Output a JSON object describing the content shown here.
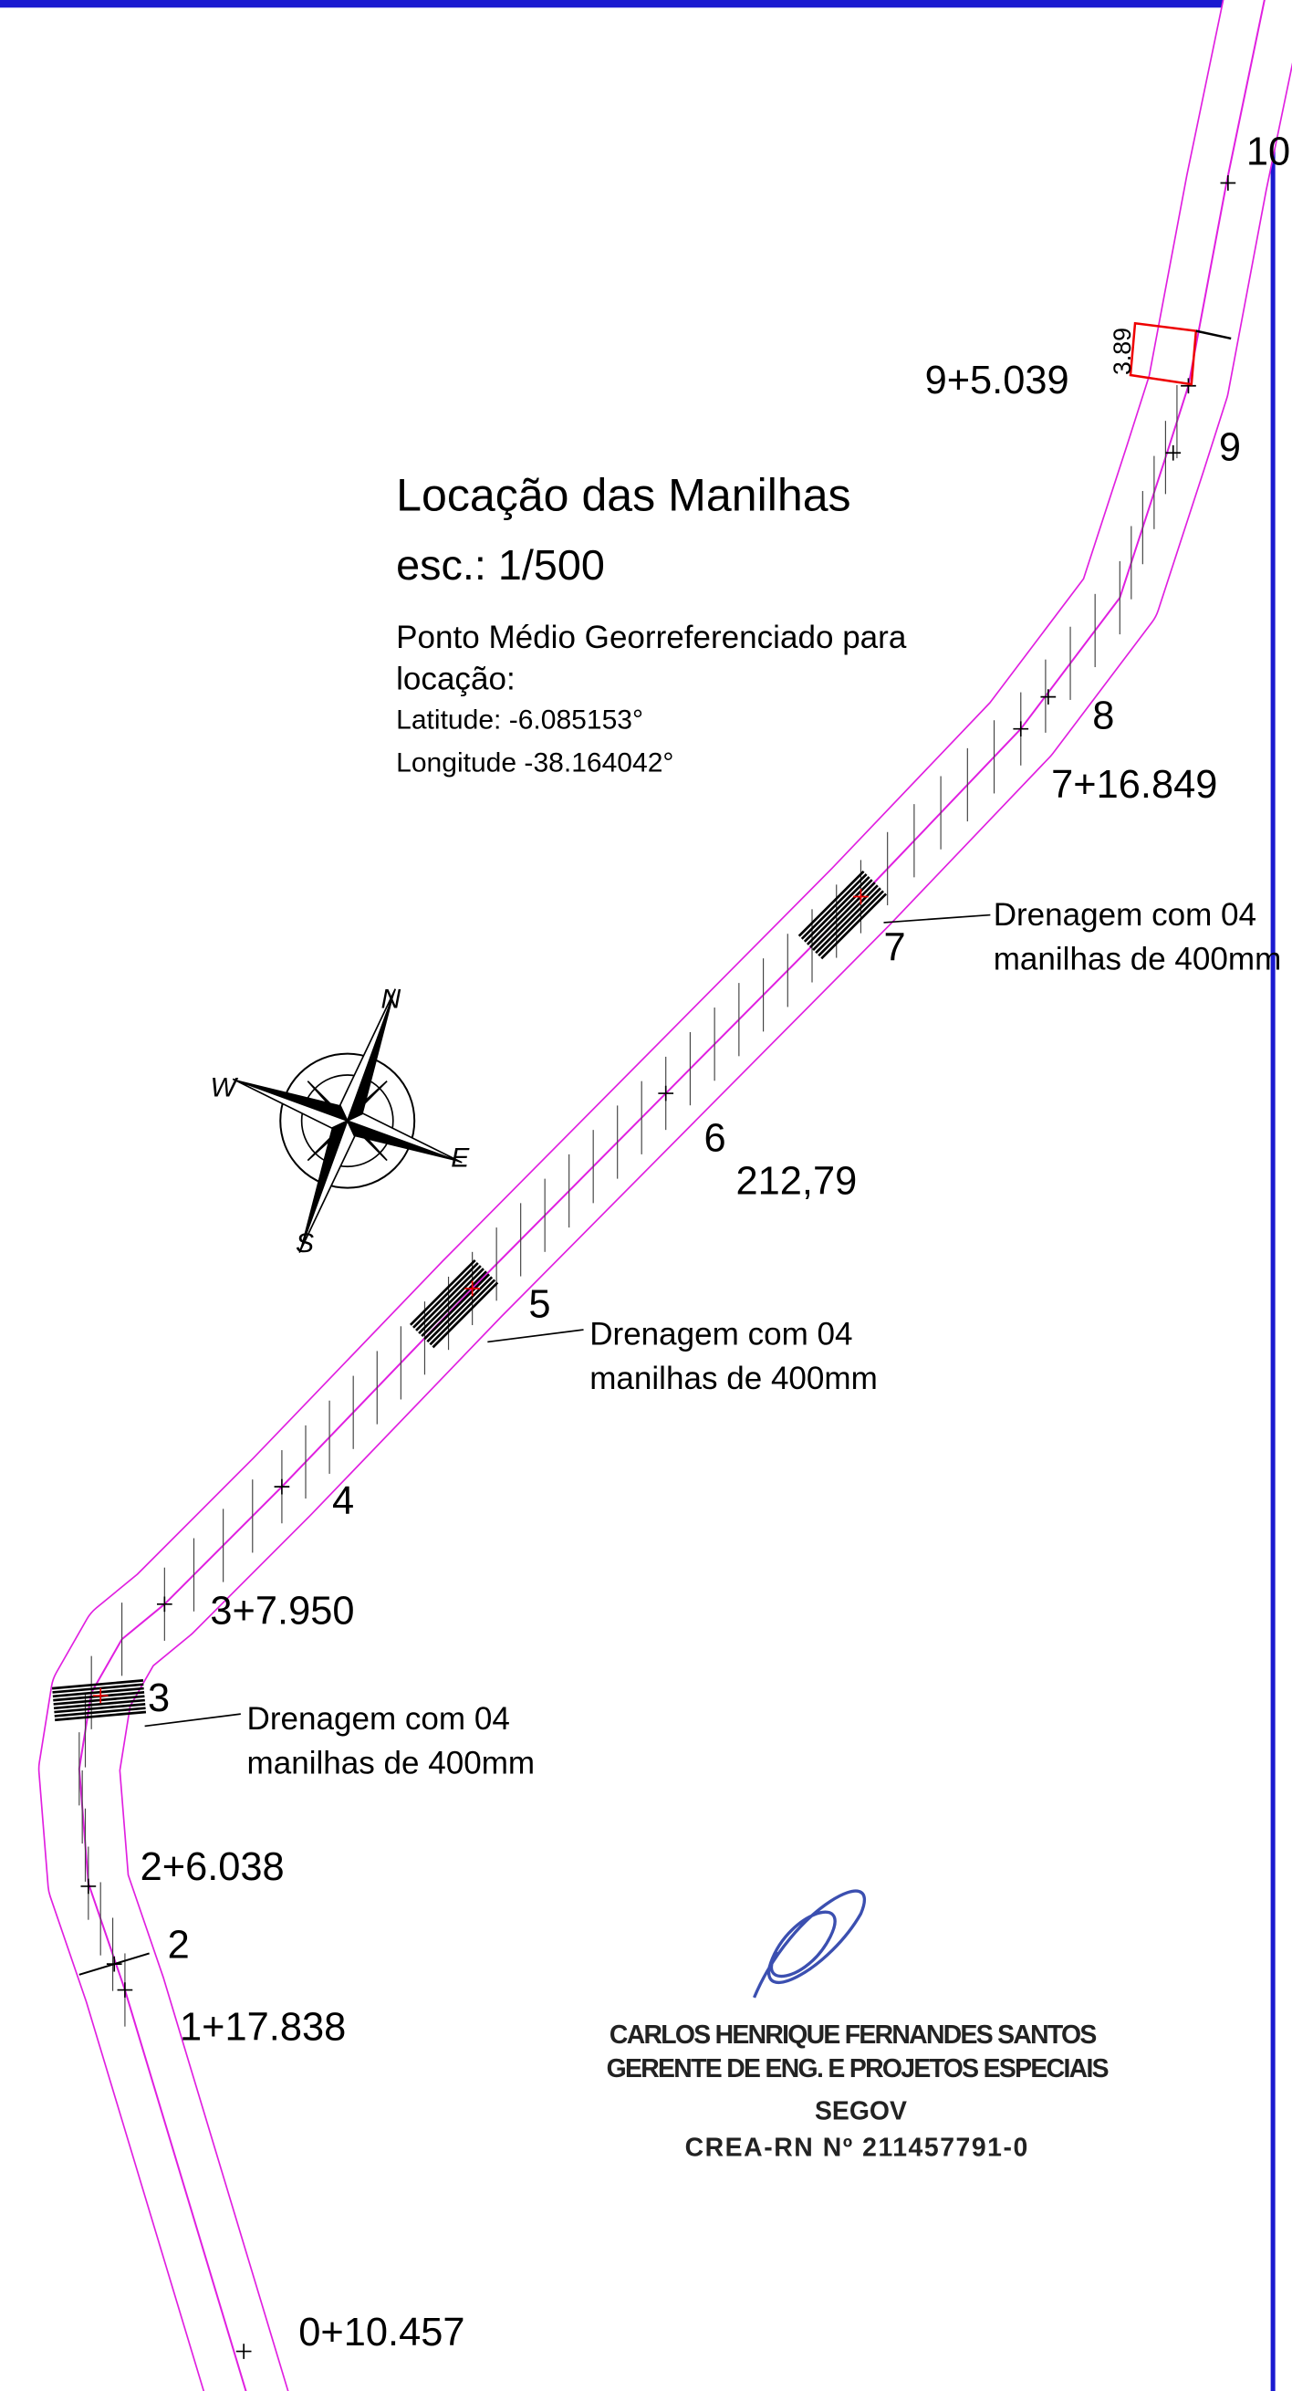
{
  "title": "Locação das Manilhas",
  "scale": "esc.: 1/500",
  "georef": {
    "lines": [
      "Ponto Médio Georreferenciado para",
      "locação:"
    ],
    "latitude": "Latitude: -6.085153°",
    "longitude": "Longitude -38.164042°"
  },
  "stations": [
    "10",
    "9+5.039",
    "9",
    "8",
    "7+16.849",
    "7",
    "6",
    "212,79",
    "5",
    "4",
    "3+7.950",
    "3",
    "2+6.038",
    "2",
    "1+17.838",
    "0+10.457"
  ],
  "dimension": "3.89",
  "annotations": [
    {
      "lines": [
        "Drenagem com 04",
        "manilhas de 400mm"
      ]
    },
    {
      "lines": [
        "Drenagem com 04",
        "manilhas de 400mm"
      ]
    },
    {
      "lines": [
        "Drenagem com 04",
        "manilhas de 400mm"
      ]
    }
  ],
  "compass": {
    "n": "N",
    "e": "E",
    "s": "S",
    "w": "W"
  },
  "signature": [
    "CARLOS HENRIQUE FERNANDES SANTOS",
    "GERENTE DE ENG. E PROJETOS ESPECIAIS",
    "SEGOV",
    "CREA-RN Nº 211457791-0"
  ]
}
